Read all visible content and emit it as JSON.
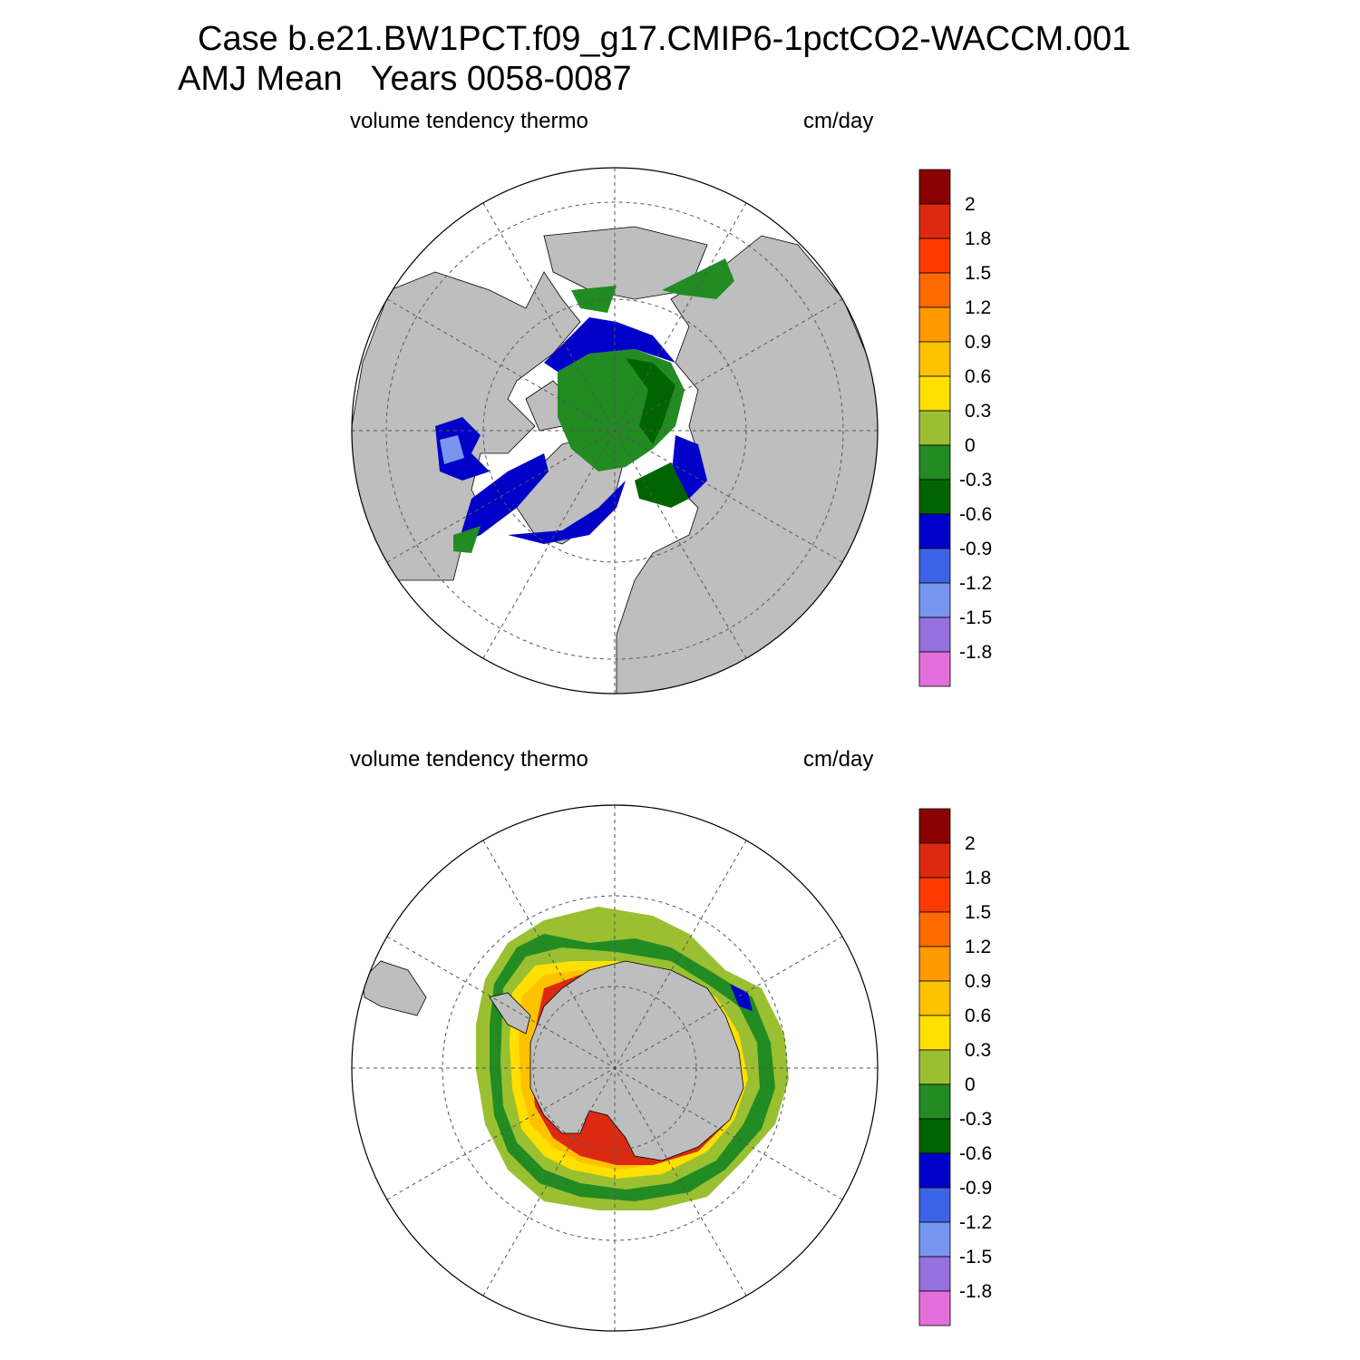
{
  "header": {
    "line1": "Case b.e21.BW1PCT.f09_g17.CMIP6-1pctCO2-WACCM.001",
    "line2": "AMJ Mean   Years 0058-0087"
  },
  "panels": [
    {
      "id": "north",
      "left_label": "volume tendency thermo",
      "right_label": "cm/day",
      "hemisphere": "north"
    },
    {
      "id": "south",
      "left_label": "volume tendency thermo",
      "right_label": "cm/day",
      "hemisphere": "south"
    }
  ],
  "colorbar": {
    "levels": [
      "2",
      "1.8",
      "1.5",
      "1.2",
      "0.9",
      "0.6",
      "0.3",
      "0",
      "-0.3",
      "-0.6",
      "-0.9",
      "-1.2",
      "-1.5",
      "-1.8"
    ],
    "colors": [
      "#8b0000",
      "#dc2a12",
      "#ff3a00",
      "#ff6a00",
      "#ff9a00",
      "#ffc200",
      "#ffe000",
      "#9ac032",
      "#228b22",
      "#006400",
      "#0000c8",
      "#3c64e6",
      "#7896f0",
      "#9670dc",
      "#e66edc"
    ]
  },
  "colors": {
    "land": "#bebebe",
    "background": "#ffffff"
  }
}
